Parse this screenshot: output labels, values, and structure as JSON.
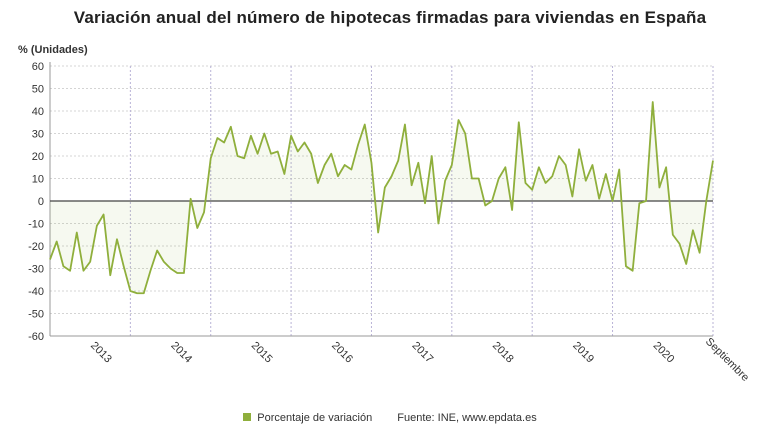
{
  "chart_data": {
    "type": "line",
    "title": "Variación anual del número de hipotecas firmadas para viviendas en España",
    "ylabel": "% (Unidades)",
    "xlabel": "",
    "ylim": [
      -60,
      60
    ],
    "y_ticks": [
      60,
      50,
      40,
      30,
      20,
      10,
      0,
      -10,
      -20,
      -30,
      -40,
      -50,
      -60
    ],
    "x_tick_labels": [
      "2013",
      "2014",
      "2015",
      "2016",
      "2017",
      "2018",
      "2019",
      "2020",
      "Septiembre"
    ],
    "grid": true,
    "legend_position": "bottom",
    "series": [
      {
        "name": "Porcentaje de variación",
        "color": "#8faf3c",
        "values": [
          -26,
          -18,
          -29,
          -31,
          -14,
          -31,
          -27,
          -11,
          -6,
          -33,
          -17,
          -29,
          -40,
          -41,
          -41,
          -31,
          -22,
          -27,
          -30,
          -32,
          -32,
          1,
          -12,
          -5,
          19,
          28,
          26,
          33,
          20,
          19,
          29,
          21,
          30,
          21,
          22,
          12,
          29,
          22,
          26,
          21,
          8,
          16,
          21,
          11,
          16,
          14,
          25,
          34,
          17,
          -14,
          6,
          11,
          18,
          34,
          7,
          17,
          -1,
          20,
          -10,
          9,
          16,
          36,
          30,
          10,
          10,
          -2,
          0,
          10,
          15,
          -4,
          35,
          8,
          5,
          15,
          8,
          11,
          20,
          16,
          2,
          23,
          9,
          16,
          1,
          12,
          0,
          14,
          -29,
          -31,
          -1,
          0,
          44,
          6,
          15,
          -15,
          -19,
          -28,
          -13,
          -23,
          0,
          18
        ]
      }
    ]
  },
  "legend": {
    "series_label": "Porcentaje de variación",
    "source": "Fuente: INE, www.epdata.es"
  }
}
